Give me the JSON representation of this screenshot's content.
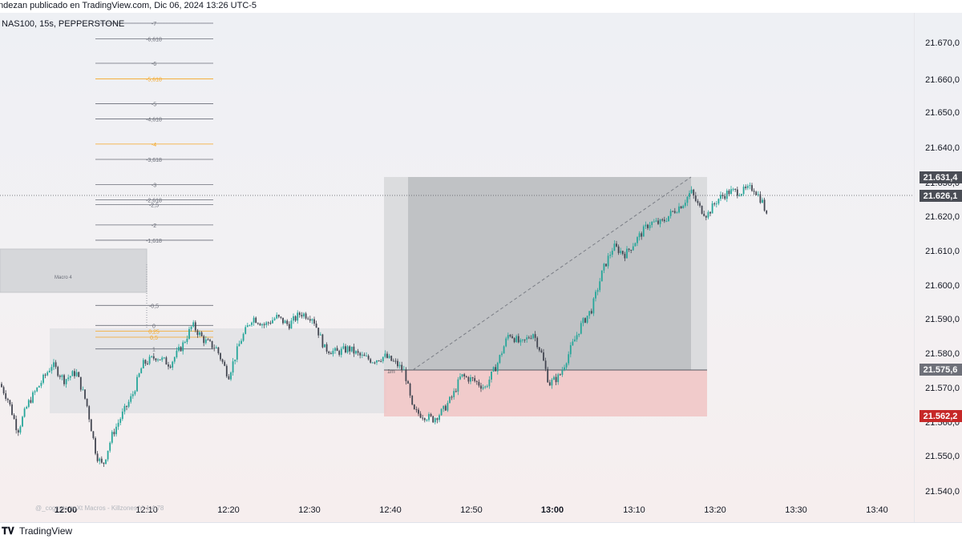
{
  "header": {
    "caption": "ndezan publicado en TradingView.com, Dic 06, 2024 13:26 UTC-5"
  },
  "symbol": "NAS100, 15s, PEPPERSTONE",
  "watermark": "@_cognyto neXt Macros - Killzones V. 1.4.78",
  "branding": {
    "logo": "tradingview-logo-icon",
    "name": "TradingView"
  },
  "colors": {
    "candle_up": "#26a69a",
    "candle_down": "#434651",
    "fib_orange": "#f5a623",
    "fib_gray": "#787b86",
    "sl_zone": "#f0c4c4",
    "tp_zone": "#b8babd",
    "badge_dark": "#4a4d55",
    "badge_red": "#c62828"
  },
  "price_axis": {
    "ticks": [
      "21.670,0",
      "21.660,0",
      "21.650,0",
      "21.640,0",
      "21.630,0",
      "21.620,0",
      "21.610,0",
      "21.600,0",
      "21.590,0",
      "21.580,0",
      "21.570,0",
      "21.560,0",
      "21.550,0",
      "21.540,0"
    ],
    "badges": [
      {
        "label": "21.631,4",
        "kind": "dark"
      },
      {
        "label": "21.626,1",
        "kind": "dark"
      },
      {
        "label": "21.575,6",
        "kind": "gray"
      },
      {
        "label": "21.562,2",
        "kind": "red"
      }
    ]
  },
  "time_axis": {
    "ticks": [
      {
        "label": "12:00",
        "bold": true
      },
      {
        "label": "12:10",
        "bold": false
      },
      {
        "label": "12:20",
        "bold": false
      },
      {
        "label": "12:30",
        "bold": false
      },
      {
        "label": "12:40",
        "bold": false
      },
      {
        "label": "12:50",
        "bold": false
      },
      {
        "label": "13:00",
        "bold": true
      },
      {
        "label": "13:10",
        "bold": false
      },
      {
        "label": "13:20",
        "bold": false
      },
      {
        "label": "13:30",
        "bold": false
      },
      {
        "label": "13:40",
        "bold": false
      }
    ]
  },
  "fib_levels": [
    {
      "label": "-7",
      "price": 21674.9,
      "color": "gray"
    },
    {
      "label": "-6,618",
      "price": 21670.9,
      "color": "gray"
    },
    {
      "label": "-6",
      "price": 21664.7,
      "color": "gray"
    },
    {
      "label": "-5,618",
      "price": 21660.7,
      "color": "orange"
    },
    {
      "label": "-5",
      "price": 21654.4,
      "color": "gray"
    },
    {
      "label": "-4,618",
      "price": 21650.5,
      "color": "gray"
    },
    {
      "label": "-4",
      "price": 21644.1,
      "color": "orange"
    },
    {
      "label": "-3,618",
      "price": 21640.2,
      "color": "gray"
    },
    {
      "label": "-3",
      "price": 21633.8,
      "color": "gray"
    },
    {
      "label": "-2,618",
      "price": 21629.9,
      "color": "gray"
    },
    {
      "label": "-2,5",
      "price": 21628.7,
      "color": "gray"
    },
    {
      "label": "-2",
      "price": 21623.5,
      "color": "gray"
    },
    {
      "label": "-1,618",
      "price": 21619.6,
      "color": "gray"
    },
    {
      "label": "-0,5",
      "price": 21603.0,
      "color": "gray"
    },
    {
      "label": "0",
      "price": 21597.9,
      "color": "gray"
    },
    {
      "label": "0,25",
      "price": 21596.4,
      "color": "orange"
    },
    {
      "label": "0,5",
      "price": 21594.9,
      "color": "orange"
    },
    {
      "label": "1",
      "price": 21591.9,
      "color": "gray"
    }
  ],
  "annotations": {
    "macro_label": "Macro 4",
    "timeframe_tag": "1m"
  }
}
